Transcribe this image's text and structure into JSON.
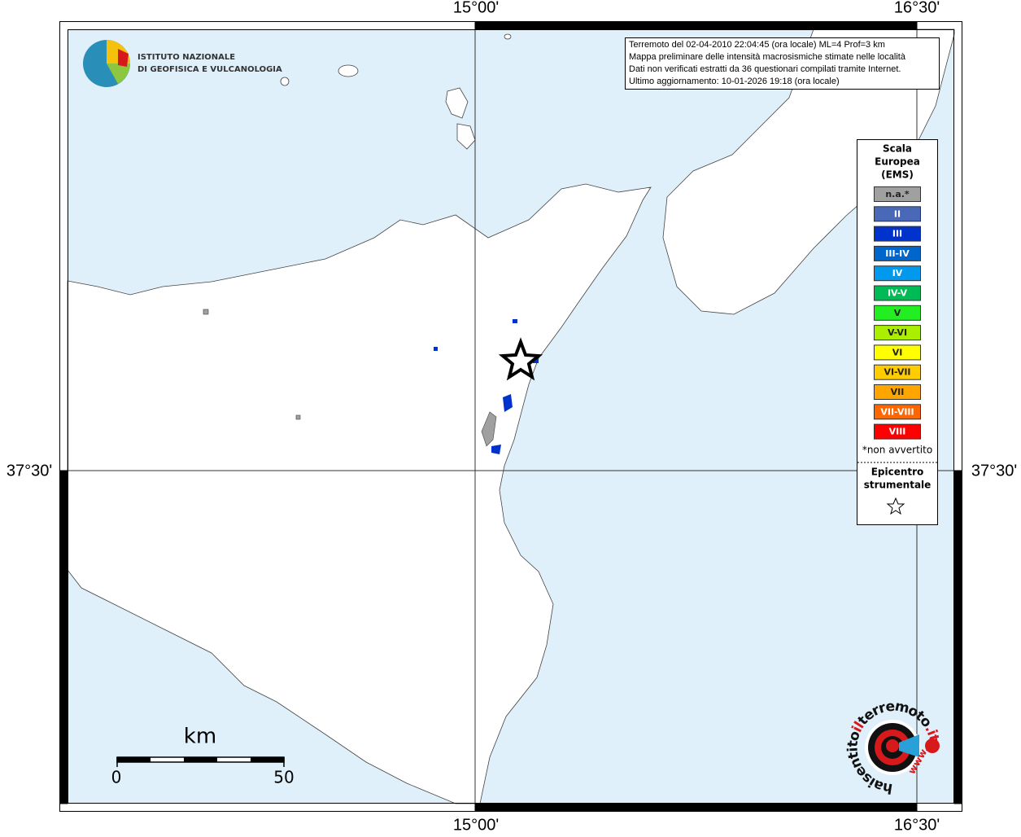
{
  "header": {
    "logo_line1": "ISTITUTO NAZIONALE",
    "logo_line2": "DI GEOFISICA E VULCANOLOGIA"
  },
  "info": [
    "Terremoto del 02-04-2010 22:04:45 (ora locale) ML=4 Prof=3 km",
    "Mappa preliminare delle intensità macrosismiche stimate nelle località",
    "Dati non verificati estratti da 36 questionari compilati tramite Internet.",
    "Ultimo aggiornamento: 10-01-2026 19:18 (ora locale)"
  ],
  "graticule": {
    "lon": [
      "15°00'",
      "16°30'"
    ],
    "lat": [
      "37°30'"
    ]
  },
  "legend": {
    "title": [
      "Scala",
      "Europea",
      "(EMS)"
    ],
    "items": [
      {
        "label": "n.a.*",
        "color": "#a0a0a0"
      },
      {
        "label": "II",
        "color": "#4a68b8"
      },
      {
        "label": "III",
        "color": "#0033cc"
      },
      {
        "label": "III-IV",
        "color": "#0066cc"
      },
      {
        "label": "IV",
        "color": "#0099ee"
      },
      {
        "label": "IV-V",
        "color": "#00bb55"
      },
      {
        "label": "V",
        "color": "#22ee22"
      },
      {
        "label": "V-VI",
        "color": "#aaee00"
      },
      {
        "label": "VI",
        "color": "#ffff00"
      },
      {
        "label": "VI-VII",
        "color": "#ffcc00"
      },
      {
        "label": "VII",
        "color": "#ffa500"
      },
      {
        "label": "VII-VIII",
        "color": "#ff6600"
      },
      {
        "label": "VIII",
        "color": "#ff0000"
      }
    ],
    "note": "*non avvertito",
    "epicenter_title": [
      "Epicentro",
      "strumentale"
    ]
  },
  "scale_bar": {
    "unit": "km",
    "labels": [
      "0",
      "50"
    ]
  },
  "watermark": {
    "parts": [
      "haisentito",
      "il",
      "terremoto",
      ".it",
      "www."
    ]
  }
}
